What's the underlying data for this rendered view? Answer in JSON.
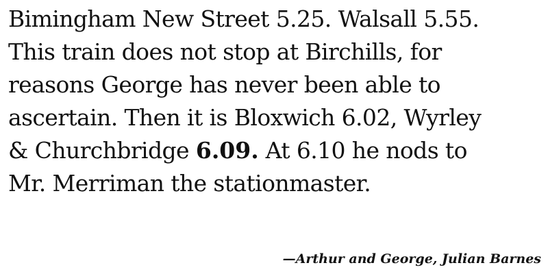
{
  "quote": {
    "line1": "Bimingham New Street 5.25. Walsall 5.55.",
    "line2": "This train does not stop at Birchills, for",
    "line3": "reasons George has never been able to",
    "line4": "ascertain. Then it is Bloxwich 6.02, Wyrley",
    "line5_before": "& Churchbridge ",
    "line5_emphasis": "6.09.",
    "line5_after": " At 6.10 he nods to",
    "line6": "Mr. Merriman the stationmaster."
  },
  "attribution": {
    "text": "—Arthur and George, Julian Barnes"
  }
}
